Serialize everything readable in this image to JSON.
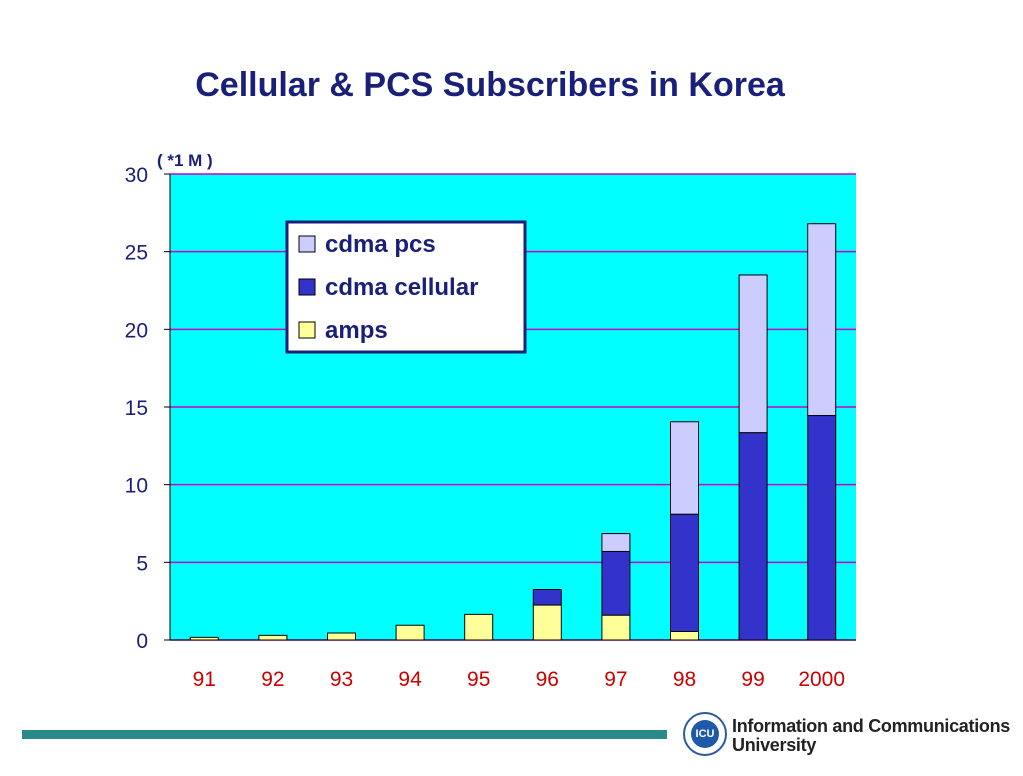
{
  "chart_data": {
    "type": "bar",
    "stacked": true,
    "title": "Cellular & PCS Subscribers  in  Korea",
    "unit_label": "( *1 M  )",
    "categories": [
      "91",
      "92",
      "93",
      "94",
      "95",
      "96",
      "97",
      "98",
      "99",
      "2000"
    ],
    "series": [
      {
        "name": "amps",
        "color": "#ffff99",
        "values": [
          0.17,
          0.3,
          0.45,
          0.95,
          1.65,
          2.25,
          1.6,
          0.55,
          0,
          0
        ]
      },
      {
        "name": "cdma cellular",
        "color": "#3333cc",
        "values": [
          0,
          0,
          0,
          0,
          0,
          1.0,
          4.1,
          7.55,
          13.35,
          14.45
        ]
      },
      {
        "name": "cdma pcs",
        "color": "#ccccff",
        "values": [
          0,
          0,
          0,
          0,
          0,
          0,
          1.15,
          5.95,
          10.15,
          12.35
        ]
      }
    ],
    "legend_order": [
      "cdma pcs",
      "cdma cellular",
      "amps"
    ],
    "ylim": [
      0,
      30
    ],
    "yticks": [
      0,
      5,
      10,
      15,
      20,
      25,
      30
    ],
    "grid": true,
    "legend_position": "top-left",
    "plot_background": "#00ffff",
    "gridline_color": "#cc00cc",
    "tick_label_color_x": "#cc0000"
  },
  "footer": {
    "institution_line1": "Information and Communications",
    "institution_line2": "University",
    "logo_text": "ICU",
    "accent_color": "#2a8a8a"
  }
}
